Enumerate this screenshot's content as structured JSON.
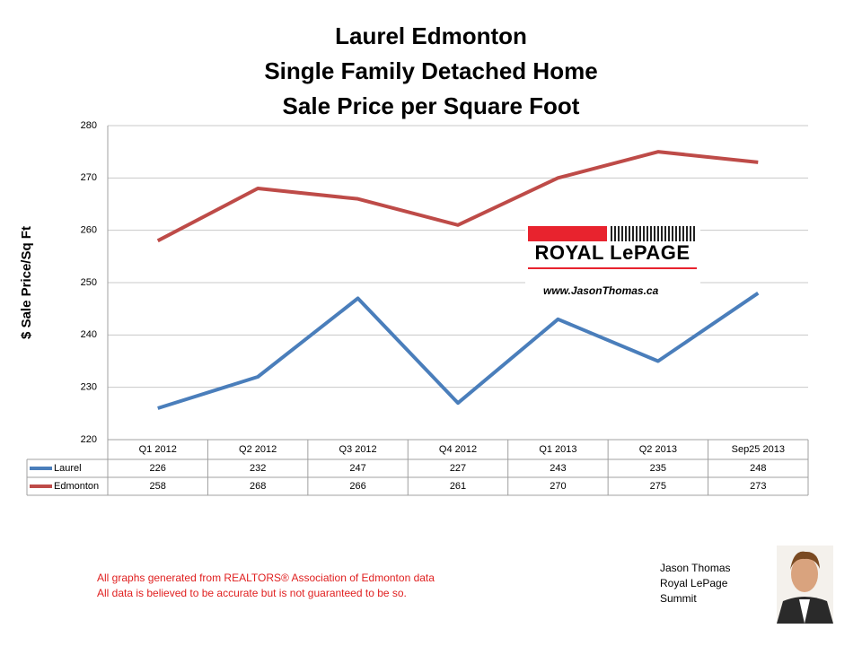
{
  "chart_data": {
    "type": "line",
    "title": [
      "Laurel Edmonton",
      "Single Family Detached Home",
      "Sale Price per Square Foot"
    ],
    "ylabel": "$ Sale Price/Sq Ft",
    "categories": [
      "Q1 2012",
      "Q2 2012",
      "Q3 2012",
      "Q4 2012",
      "Q1 2013",
      "Q2 2013",
      "Sep25 2013"
    ],
    "series": [
      {
        "name": "Laurel",
        "color": "#4a7ebb",
        "values": [
          226,
          232,
          247,
          227,
          243,
          235,
          248
        ]
      },
      {
        "name": "Edmonton",
        "color": "#be4b48",
        "values": [
          258,
          268,
          266,
          261,
          270,
          275,
          273
        ]
      }
    ],
    "ylim": [
      220,
      280
    ],
    "yticks": [
      220,
      230,
      240,
      250,
      260,
      270,
      280
    ],
    "grid": true,
    "annotations": {
      "logo": "ROYAL LePAGE",
      "website": "www.JasonThomas.ca",
      "footer": [
        "All graphs generated from REALTORS® Association of Edmonton data",
        "All data is believed to be accurate but is not guaranteed to be so."
      ],
      "signature": [
        "Jason Thomas",
        "Royal LePage",
        "Summit"
      ]
    }
  }
}
